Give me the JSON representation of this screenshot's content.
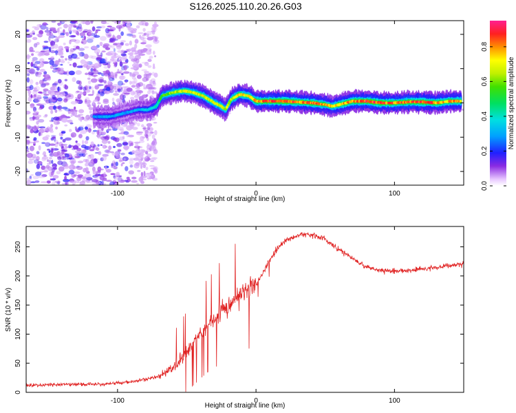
{
  "title": "S126.2025.110.20.26.G03",
  "colors": {
    "snr_line": "#e02020",
    "background": "#ffffff"
  },
  "chart_data": [
    {
      "type": "heatmap",
      "name": "spectrogram",
      "xlabel": "Height of straight line (km)",
      "ylabel": "Frequency (Hz)",
      "xlim": [
        -166,
        150
      ],
      "ylim": [
        -24,
        24
      ],
      "x_ticks": [
        -100,
        0,
        100
      ],
      "x_tick_labels": [
        "-100",
        "0",
        "100"
      ],
      "y_ticks": [
        -20,
        -10,
        0,
        10,
        20
      ],
      "y_tick_labels": [
        "-20",
        "-10",
        "0",
        "10",
        "20"
      ],
      "noise_region_x": [
        -166,
        -80
      ],
      "ridge": {
        "x": [
          -117,
          -105,
          -95,
          -85,
          -78,
          -72,
          -68,
          -60,
          -52,
          -45,
          -38,
          -30,
          -25,
          -22,
          -18,
          -12,
          -5,
          0,
          10,
          20,
          30,
          40,
          50,
          55,
          60,
          70,
          80,
          90,
          100,
          110,
          120,
          130,
          140,
          148
        ],
        "y": [
          -4,
          -4,
          -3,
          -2,
          -2,
          -1,
          2,
          3,
          3.5,
          3,
          2,
          0,
          -1,
          -2,
          1,
          2.5,
          2,
          0.5,
          0.5,
          0.5,
          0.3,
          0,
          -0.5,
          -1,
          -0.5,
          0.5,
          0.5,
          0,
          0,
          0.3,
          0.3,
          0,
          0.5,
          0.5
        ],
        "amplitude": [
          0.3,
          0.35,
          0.3,
          0.35,
          0.4,
          0.45,
          0.6,
          0.7,
          0.75,
          0.75,
          0.75,
          0.75,
          0.7,
          0.7,
          0.75,
          0.8,
          0.8,
          0.85,
          0.95,
          0.95,
          0.9,
          0.9,
          0.85,
          0.8,
          0.85,
          0.9,
          0.95,
          0.95,
          0.9,
          0.9,
          0.95,
          0.9,
          0.85,
          0.85
        ]
      },
      "colorbar": {
        "label": "Normalized spectral amplitude",
        "range": [
          0,
          0.95
        ],
        "ticks": [
          0.0,
          0.2,
          0.4,
          0.6,
          0.8
        ],
        "tick_labels": [
          "0.0",
          "0.2",
          "0.4",
          "0.6",
          "0.8"
        ]
      }
    },
    {
      "type": "line",
      "name": "snr",
      "xlabel": "Height of straight line (km)",
      "ylabel": "SNR (10 * v/v)",
      "xlim": [
        -166,
        150
      ],
      "ylim": [
        0,
        285
      ],
      "x_ticks": [
        -100,
        0,
        100
      ],
      "x_tick_labels": [
        "-100",
        "0",
        "100"
      ],
      "y_ticks": [
        0,
        50,
        100,
        150,
        200,
        250
      ],
      "y_tick_labels": [
        "0",
        "50",
        "100",
        "150",
        "200",
        "250"
      ],
      "series": [
        {
          "name": "SNR",
          "x": [
            -166,
            -150,
            -130,
            -110,
            -90,
            -80,
            -75,
            -70,
            -65,
            -60,
            -55,
            -50,
            -45,
            -40,
            -35,
            -30,
            -25,
            -20,
            -15,
            -10,
            -5,
            0,
            5,
            10,
            15,
            20,
            25,
            30,
            35,
            40,
            45,
            50,
            55,
            60,
            65,
            70,
            75,
            80,
            90,
            100,
            110,
            120,
            130,
            140,
            150
          ],
          "y": [
            12,
            13,
            14,
            14,
            18,
            22,
            25,
            28,
            35,
            40,
            55,
            70,
            85,
            100,
            115,
            125,
            140,
            150,
            160,
            170,
            178,
            185,
            205,
            228,
            245,
            258,
            265,
            270,
            272,
            270,
            268,
            262,
            255,
            245,
            238,
            230,
            222,
            215,
            210,
            208,
            210,
            212,
            215,
            218,
            220
          ]
        }
      ]
    }
  ]
}
